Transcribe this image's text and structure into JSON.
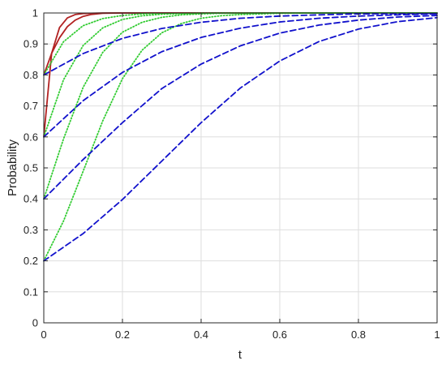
{
  "chart_data": {
    "type": "line",
    "title": "",
    "xlabel": "t",
    "ylabel": "Probability",
    "xlim": [
      0,
      1
    ],
    "ylim": [
      0,
      1
    ],
    "xticks": [
      0,
      0.2,
      0.4,
      0.6,
      0.8,
      1
    ],
    "xtick_labels": [
      "0",
      "0.2",
      "0.4",
      "0.6",
      "0.8",
      "1"
    ],
    "yticks": [
      0,
      0.1,
      0.2,
      0.3,
      0.4,
      0.5,
      0.6,
      0.7,
      0.8,
      0.9,
      1
    ],
    "ytick_labels": [
      "0",
      "0.1",
      "0.2",
      "0.3",
      "0.4",
      "0.5",
      "0.6",
      "0.7",
      "0.8",
      "0.9",
      "1"
    ],
    "grid": true,
    "legend": "none",
    "series": [
      {
        "color": "#b22222",
        "style": "solid",
        "x": [
          0,
          0.02,
          0.04,
          0.06,
          0.08,
          0.1,
          0.12,
          0.15,
          0.2,
          0.3,
          0.5,
          1
        ],
        "y": [
          0.6,
          0.87,
          0.953,
          0.984,
          0.995,
          0.998,
          0.999,
          1.0,
          1.0,
          1.0,
          1.0,
          1.0
        ]
      },
      {
        "color": "#b22222",
        "style": "solid",
        "x": [
          0,
          0.02,
          0.04,
          0.06,
          0.08,
          0.1,
          0.12,
          0.15,
          0.2,
          0.3,
          0.5,
          1
        ],
        "y": [
          0.8,
          0.87,
          0.92,
          0.956,
          0.977,
          0.989,
          0.995,
          0.999,
          1.0,
          1.0,
          1.0,
          1.0
        ]
      },
      {
        "color": "#33cc33",
        "style": "dotted",
        "x": [
          0,
          0.05,
          0.1,
          0.15,
          0.2,
          0.25,
          0.3,
          0.35,
          0.4,
          0.45,
          0.5,
          0.6,
          0.7,
          0.8,
          1
        ],
        "y": [
          0.2,
          0.328,
          0.489,
          0.652,
          0.788,
          0.88,
          0.936,
          0.966,
          0.983,
          0.991,
          0.995,
          0.999,
          1.0,
          1.0,
          1.0
        ]
      },
      {
        "color": "#33cc33",
        "style": "dotted",
        "x": [
          0,
          0.05,
          0.1,
          0.15,
          0.2,
          0.25,
          0.3,
          0.35,
          0.4,
          0.45,
          0.5,
          0.6,
          0.7,
          0.8,
          1
        ],
        "y": [
          0.4,
          0.593,
          0.76,
          0.873,
          0.938,
          0.97,
          0.986,
          0.994,
          0.997,
          0.999,
          0.999,
          1.0,
          1.0,
          1.0,
          1.0
        ]
      },
      {
        "color": "#33cc33",
        "style": "dotted",
        "x": [
          0,
          0.05,
          0.1,
          0.15,
          0.2,
          0.25,
          0.3,
          0.35,
          0.4,
          0.45,
          0.5,
          0.6,
          0.7,
          0.8,
          1
        ],
        "y": [
          0.6,
          0.784,
          0.895,
          0.952,
          0.979,
          0.991,
          0.996,
          0.998,
          0.999,
          1.0,
          1.0,
          1.0,
          1.0,
          1.0,
          1.0
        ]
      },
      {
        "color": "#33cc33",
        "style": "dotted",
        "x": [
          0,
          0.05,
          0.1,
          0.15,
          0.2,
          0.25,
          0.3,
          0.35,
          0.4,
          0.45,
          0.5,
          0.6,
          0.7,
          0.8,
          1
        ],
        "y": [
          0.8,
          0.907,
          0.959,
          0.982,
          0.992,
          0.997,
          0.999,
          0.999,
          1.0,
          1.0,
          1.0,
          1.0,
          1.0,
          1.0,
          1.0
        ]
      },
      {
        "color": "#1111cc",
        "style": "dashed",
        "x": [
          0,
          0.1,
          0.2,
          0.3,
          0.4,
          0.5,
          0.6,
          0.7,
          0.8,
          0.9,
          1
        ],
        "y": [
          0.2,
          0.288,
          0.398,
          0.522,
          0.646,
          0.758,
          0.845,
          0.908,
          0.948,
          0.972,
          0.985
        ]
      },
      {
        "color": "#1111cc",
        "style": "dashed",
        "x": [
          0,
          0.1,
          0.2,
          0.3,
          0.4,
          0.5,
          0.6,
          0.7,
          0.8,
          0.9,
          1
        ],
        "y": [
          0.4,
          0.527,
          0.646,
          0.756,
          0.835,
          0.894,
          0.935,
          0.961,
          0.977,
          0.987,
          0.992
        ]
      },
      {
        "color": "#1111cc",
        "style": "dashed",
        "x": [
          0,
          0.1,
          0.2,
          0.3,
          0.4,
          0.5,
          0.6,
          0.7,
          0.8,
          0.9,
          1
        ],
        "y": [
          0.6,
          0.717,
          0.808,
          0.875,
          0.921,
          0.951,
          0.971,
          0.983,
          0.99,
          0.994,
          0.997
        ]
      },
      {
        "color": "#1111cc",
        "style": "dashed",
        "x": [
          0,
          0.1,
          0.2,
          0.3,
          0.4,
          0.5,
          0.6,
          0.7,
          0.8,
          0.9,
          1
        ],
        "y": [
          0.8,
          0.869,
          0.918,
          0.95,
          0.97,
          0.983,
          0.99,
          0.994,
          0.997,
          0.998,
          0.999
        ]
      }
    ]
  }
}
